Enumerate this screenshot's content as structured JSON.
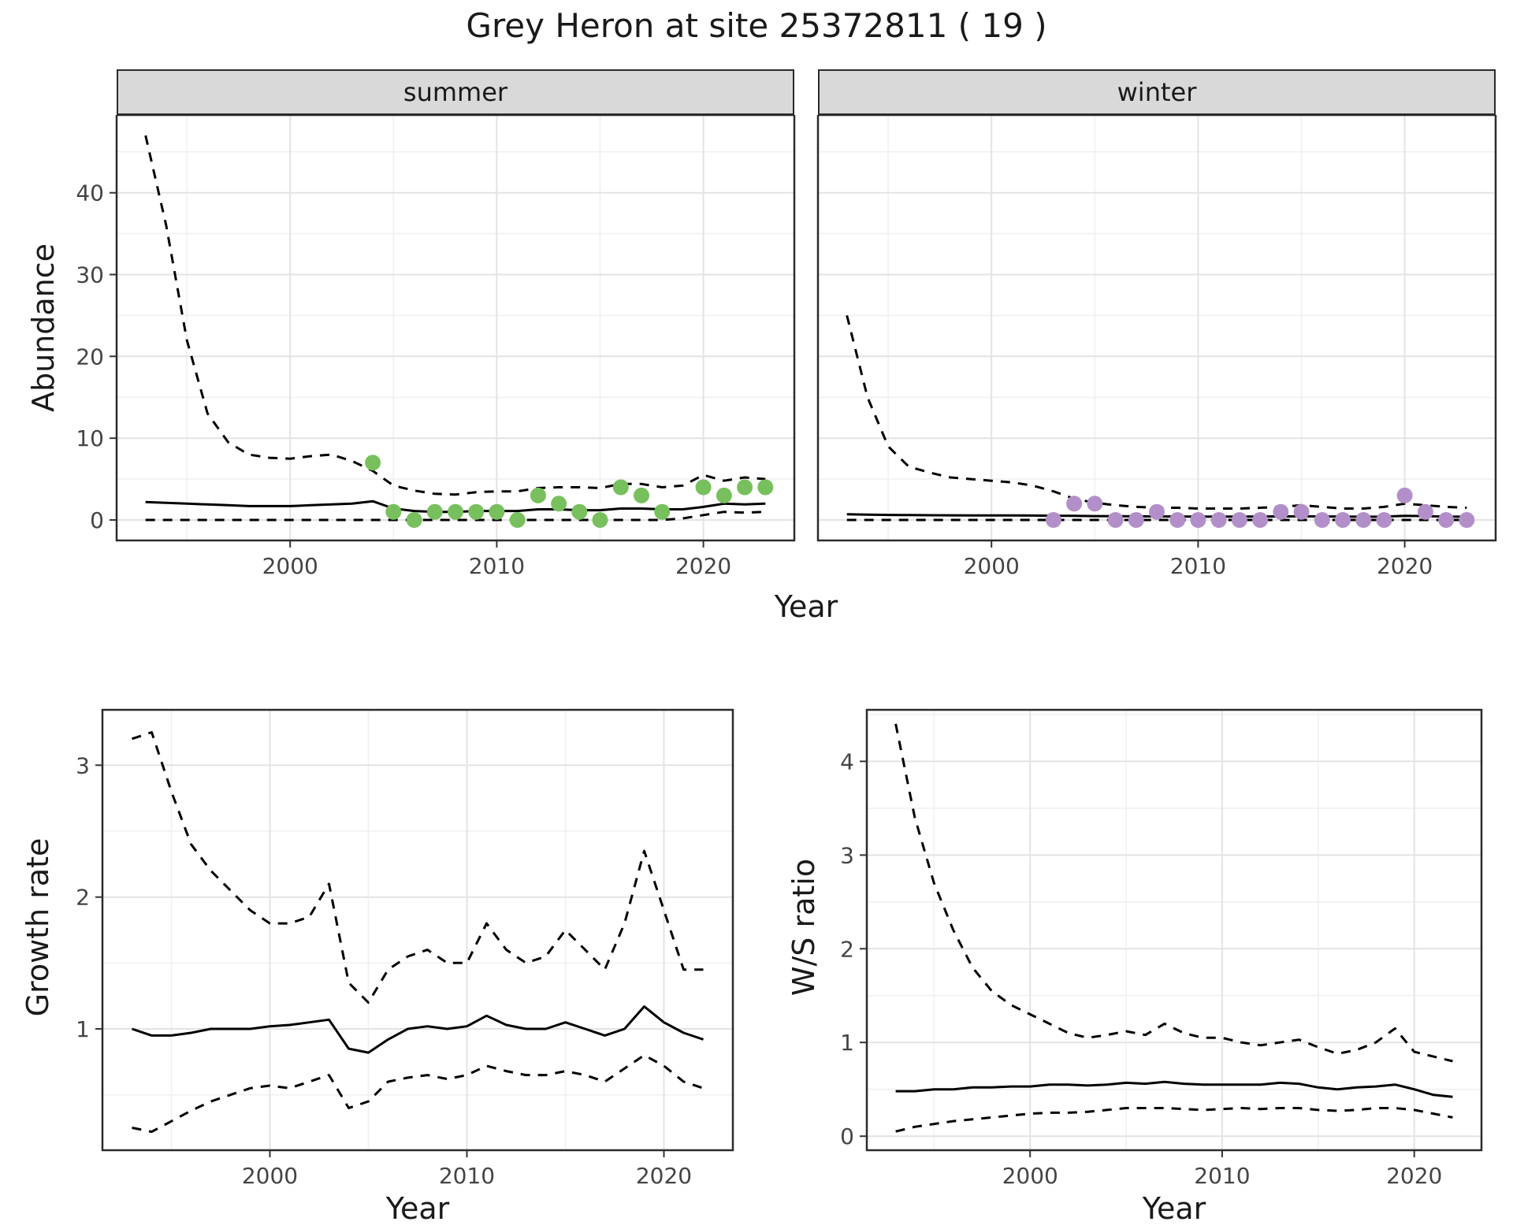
{
  "title": "Grey Heron at site 25372811 ( 19 )",
  "chart_data": [
    {
      "id": "abundance",
      "type": "line",
      "title": "Grey Heron at site 25372811 ( 19 )",
      "xlabel": "Year",
      "ylabel": "Abundance",
      "x_ticks": [
        2000,
        2010,
        2020
      ],
      "y_ticks": [
        0,
        10,
        20,
        30,
        40
      ],
      "x_range": [
        1991.6,
        2024.4
      ],
      "y_range": [
        -2.5,
        49.5
      ],
      "line_color": "#000000",
      "grid": true,
      "legend": "none",
      "facets": [
        {
          "label": "summer",
          "point_color": "#77c05d",
          "years": [
            1993,
            1994,
            1995,
            1996,
            1997,
            1998,
            1999,
            2000,
            2001,
            2002,
            2003,
            2004,
            2005,
            2006,
            2007,
            2008,
            2009,
            2010,
            2011,
            2012,
            2013,
            2014,
            2015,
            2016,
            2017,
            2018,
            2019,
            2020,
            2021,
            2022,
            2023
          ],
          "series": [
            {
              "name": "upper_ci",
              "style": "dashed",
              "values": [
                47,
                36,
                22,
                13,
                9.5,
                8,
                7.6,
                7.5,
                7.8,
                8,
                7.2,
                6,
                4.2,
                3.6,
                3.2,
                3.1,
                3.4,
                3.5,
                3.5,
                3.9,
                4,
                4,
                3.9,
                4.4,
                4.4,
                4,
                4.2,
                5.5,
                4.8,
                5.2,
                5
              ]
            },
            {
              "name": "median",
              "style": "solid",
              "values": [
                2.2,
                2.1,
                2,
                1.9,
                1.8,
                1.7,
                1.7,
                1.7,
                1.8,
                1.9,
                2,
                2.3,
                1.4,
                1.1,
                1,
                1,
                1.1,
                1.1,
                1.1,
                1.3,
                1.3,
                1.2,
                1.2,
                1.4,
                1.4,
                1.3,
                1.3,
                1.6,
                2,
                1.9,
                2
              ]
            },
            {
              "name": "lower_ci",
              "style": "dashed",
              "values": [
                0,
                0,
                0,
                0,
                0,
                0,
                0,
                0,
                0,
                0,
                0,
                0,
                0,
                0,
                0,
                0,
                0,
                0,
                0,
                0,
                0,
                0,
                0,
                0,
                0,
                0,
                0.2,
                0.6,
                1,
                0.9,
                1
              ]
            }
          ],
          "points": {
            "name": "observed-counts",
            "x": [
              2004,
              2005,
              2006,
              2007,
              2008,
              2009,
              2010,
              2011,
              2012,
              2013,
              2014,
              2015,
              2016,
              2017,
              2018,
              2020,
              2021,
              2022,
              2023
            ],
            "y": [
              7,
              1,
              0,
              1,
              1,
              1,
              1,
              0,
              3,
              2,
              1,
              0,
              4,
              3,
              1,
              4,
              3,
              4,
              4
            ]
          }
        },
        {
          "label": "winter",
          "point_color": "#b38fc9",
          "years": [
            1993,
            1994,
            1995,
            1996,
            1997,
            1998,
            1999,
            2000,
            2001,
            2002,
            2003,
            2004,
            2005,
            2006,
            2007,
            2008,
            2009,
            2010,
            2011,
            2012,
            2013,
            2014,
            2015,
            2016,
            2017,
            2018,
            2019,
            2020,
            2021,
            2022,
            2023
          ],
          "series": [
            {
              "name": "upper_ci",
              "style": "dashed",
              "values": [
                25,
                15,
                9,
                6.5,
                5.8,
                5.2,
                5,
                4.8,
                4.6,
                4.2,
                3.5,
                2.6,
                2.1,
                1.8,
                1.6,
                1.5,
                1.5,
                1.4,
                1.4,
                1.4,
                1.5,
                1.6,
                1.8,
                1.6,
                1.4,
                1.4,
                1.6,
                2,
                1.8,
                1.6,
                1.5
              ]
            },
            {
              "name": "median",
              "style": "solid",
              "values": [
                0.7,
                0.65,
                0.62,
                0.6,
                0.58,
                0.57,
                0.56,
                0.55,
                0.55,
                0.54,
                0.52,
                0.5,
                0.48,
                0.46,
                0.45,
                0.44,
                0.43,
                0.42,
                0.42,
                0.42,
                0.43,
                0.44,
                0.45,
                0.44,
                0.42,
                0.4,
                0.42,
                0.5,
                0.48,
                0.42,
                0.4
              ]
            },
            {
              "name": "lower_ci",
              "style": "dashed",
              "values": [
                0,
                0,
                0,
                0,
                0,
                0,
                0,
                0,
                0,
                0,
                0,
                0,
                0,
                0,
                0,
                0,
                0,
                0,
                0,
                0,
                0,
                0,
                0,
                0,
                0,
                0,
                0,
                0,
                0,
                0,
                0
              ]
            }
          ],
          "points": {
            "name": "observed-counts",
            "x": [
              2003,
              2004,
              2005,
              2006,
              2007,
              2008,
              2009,
              2010,
              2011,
              2012,
              2013,
              2014,
              2015,
              2016,
              2017,
              2018,
              2019,
              2020,
              2021,
              2022,
              2023
            ],
            "y": [
              0,
              2,
              2,
              0,
              0,
              1,
              0,
              0,
              0,
              0,
              0,
              1,
              1,
              0,
              0,
              0,
              0,
              3,
              1,
              0,
              0
            ]
          }
        }
      ]
    },
    {
      "id": "growth_rate",
      "type": "line",
      "xlabel": "Year",
      "ylabel": "Growth rate",
      "x_ticks": [
        2000,
        2010,
        2020
      ],
      "y_ticks": [
        1,
        2,
        3
      ],
      "x_range": [
        1991.5,
        2023.5
      ],
      "y_range": [
        0.08,
        3.42
      ],
      "line_color": "#000000",
      "grid": true,
      "legend": "none",
      "years": [
        1993,
        1994,
        1995,
        1996,
        1997,
        1998,
        1999,
        2000,
        2001,
        2002,
        2003,
        2004,
        2005,
        2006,
        2007,
        2008,
        2009,
        2010,
        2011,
        2012,
        2013,
        2014,
        2015,
        2016,
        2017,
        2018,
        2019,
        2020,
        2021,
        2022
      ],
      "series": [
        {
          "name": "upper_ci",
          "style": "dashed",
          "values": [
            3.2,
            3.25,
            2.8,
            2.4,
            2.2,
            2.05,
            1.9,
            1.8,
            1.8,
            1.85,
            2.1,
            1.35,
            1.2,
            1.45,
            1.55,
            1.6,
            1.5,
            1.5,
            1.8,
            1.6,
            1.5,
            1.55,
            1.75,
            1.6,
            1.45,
            1.8,
            2.35,
            1.9,
            1.45,
            1.45
          ]
        },
        {
          "name": "median",
          "style": "solid",
          "values": [
            1,
            0.95,
            0.95,
            0.97,
            1,
            1,
            1,
            1.02,
            1.03,
            1.05,
            1.07,
            0.85,
            0.82,
            0.92,
            1,
            1.02,
            1,
            1.02,
            1.1,
            1.03,
            1,
            1,
            1.05,
            1,
            0.95,
            1,
            1.17,
            1.05,
            0.97,
            0.92
          ]
        },
        {
          "name": "lower_ci",
          "style": "dashed",
          "values": [
            0.25,
            0.22,
            0.3,
            0.38,
            0.45,
            0.5,
            0.55,
            0.57,
            0.55,
            0.6,
            0.65,
            0.4,
            0.45,
            0.6,
            0.63,
            0.65,
            0.62,
            0.65,
            0.72,
            0.68,
            0.65,
            0.65,
            0.68,
            0.65,
            0.6,
            0.7,
            0.8,
            0.72,
            0.6,
            0.55
          ]
        }
      ]
    },
    {
      "id": "ws_ratio",
      "type": "line",
      "xlabel": "Year",
      "ylabel": "W/S ratio",
      "x_ticks": [
        2000,
        2010,
        2020
      ],
      "y_ticks": [
        0,
        1,
        2,
        3,
        4
      ],
      "x_range": [
        1991.5,
        2023.5
      ],
      "y_range": [
        -0.15,
        4.55
      ],
      "line_color": "#000000",
      "grid": true,
      "legend": "none",
      "years": [
        1993,
        1994,
        1995,
        1996,
        1997,
        1998,
        1999,
        2000,
        2001,
        2002,
        2003,
        2004,
        2005,
        2006,
        2007,
        2008,
        2009,
        2010,
        2011,
        2012,
        2013,
        2014,
        2015,
        2016,
        2017,
        2018,
        2019,
        2020,
        2021,
        2022
      ],
      "series": [
        {
          "name": "upper_ci",
          "style": "dashed",
          "values": [
            4.4,
            3.4,
            2.7,
            2.2,
            1.8,
            1.55,
            1.4,
            1.3,
            1.2,
            1.1,
            1.05,
            1.08,
            1.12,
            1.08,
            1.2,
            1.1,
            1.05,
            1.05,
            1,
            0.97,
            1,
            1.03,
            0.95,
            0.88,
            0.92,
            1,
            1.15,
            0.9,
            0.85,
            0.8
          ]
        },
        {
          "name": "median",
          "style": "solid",
          "values": [
            0.48,
            0.48,
            0.5,
            0.5,
            0.52,
            0.52,
            0.53,
            0.53,
            0.55,
            0.55,
            0.54,
            0.55,
            0.57,
            0.56,
            0.58,
            0.56,
            0.55,
            0.55,
            0.55,
            0.55,
            0.57,
            0.56,
            0.52,
            0.5,
            0.52,
            0.53,
            0.55,
            0.5,
            0.44,
            0.42
          ]
        },
        {
          "name": "lower_ci",
          "style": "dashed",
          "values": [
            0.05,
            0.1,
            0.13,
            0.16,
            0.18,
            0.2,
            0.22,
            0.24,
            0.25,
            0.25,
            0.26,
            0.28,
            0.3,
            0.3,
            0.3,
            0.29,
            0.28,
            0.29,
            0.3,
            0.29,
            0.3,
            0.3,
            0.28,
            0.27,
            0.28,
            0.3,
            0.3,
            0.28,
            0.24,
            0.2
          ]
        }
      ]
    }
  ]
}
